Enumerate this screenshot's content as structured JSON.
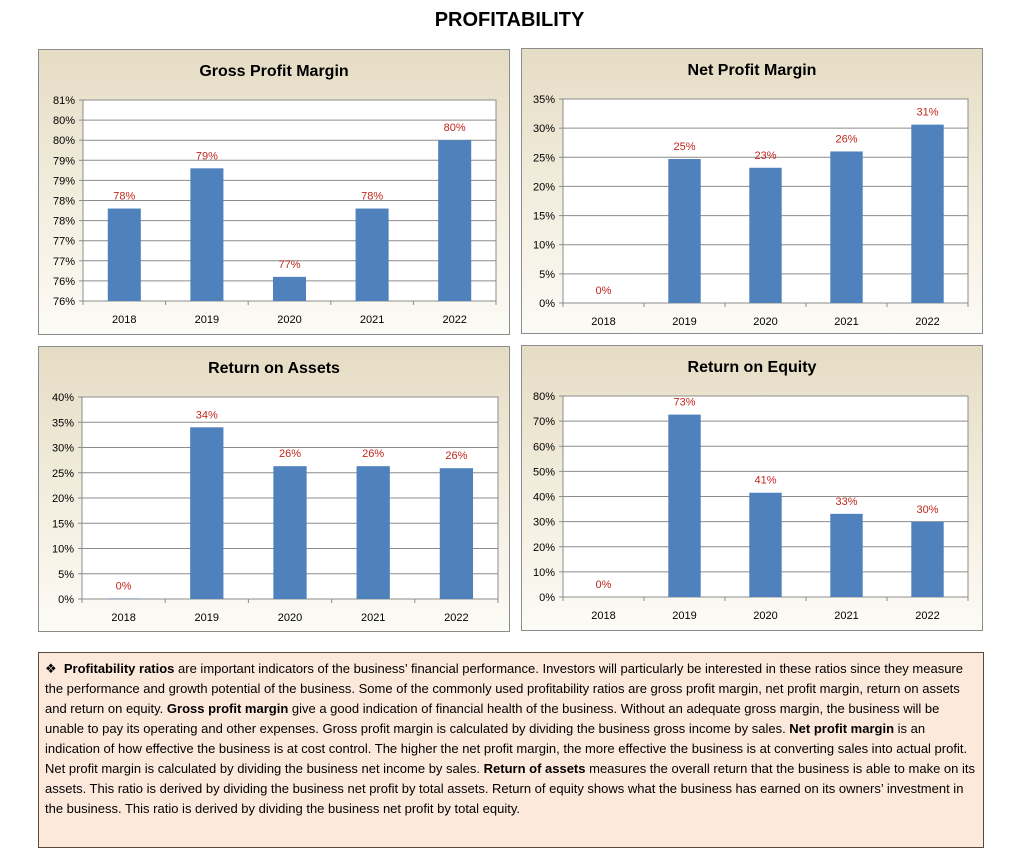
{
  "page": {
    "title": "PROFITABILITY"
  },
  "chart_data": [
    {
      "type": "bar",
      "title": "Gross Profit Margin",
      "categories": [
        "2018",
        "2019",
        "2020",
        "2021",
        "2022"
      ],
      "values": [
        78.3,
        79.3,
        76.6,
        78.3,
        80.0
      ],
      "data_labels": [
        "78%",
        "79%",
        "77%",
        "78%",
        "80%"
      ],
      "ylim": [
        76,
        81
      ],
      "yticks": [
        "76%",
        "76%",
        "77%",
        "77%",
        "78%",
        "78%",
        "79%",
        "79%",
        "80%",
        "80%",
        "81%"
      ],
      "bar_color": "#4f81bd",
      "label_color": "#c0261c",
      "grid": true
    },
    {
      "type": "bar",
      "title": "Net Profit Margin",
      "categories": [
        "2018",
        "2019",
        "2020",
        "2021",
        "2022"
      ],
      "values": [
        0,
        24.7,
        23.2,
        26.0,
        30.6
      ],
      "data_labels": [
        "0%",
        "25%",
        "23%",
        "26%",
        "31%"
      ],
      "ylim": [
        0,
        35
      ],
      "yticks": [
        "0%",
        "5%",
        "10%",
        "15%",
        "20%",
        "25%",
        "30%",
        "35%"
      ],
      "bar_color": "#4f81bd",
      "label_color": "#c0261c",
      "grid": true
    },
    {
      "type": "bar",
      "title": "Return on Assets",
      "categories": [
        "2018",
        "2019",
        "2020",
        "2021",
        "2022"
      ],
      "values": [
        0.1,
        34.0,
        26.3,
        26.3,
        25.9
      ],
      "data_labels": [
        "0%",
        "34%",
        "26%",
        "26%",
        "26%"
      ],
      "ylim": [
        0,
        40
      ],
      "yticks": [
        "0%",
        "5%",
        "10%",
        "15%",
        "20%",
        "25%",
        "30%",
        "35%",
        "40%"
      ],
      "bar_color": "#4f81bd",
      "label_color": "#c0261c",
      "grid": true
    },
    {
      "type": "bar",
      "title": "Return on Equity",
      "categories": [
        "2018",
        "2019",
        "2020",
        "2021",
        "2022"
      ],
      "values": [
        0,
        72.6,
        41.5,
        33.1,
        29.9
      ],
      "data_labels": [
        "0%",
        "73%",
        "41%",
        "33%",
        "30%"
      ],
      "ylim": [
        0,
        80
      ],
      "yticks": [
        "0%",
        "10%",
        "20%",
        "30%",
        "40%",
        "50%",
        "60%",
        "70%",
        "80%"
      ],
      "bar_color": "#4f81bd",
      "label_color": "#c0261c",
      "grid": true
    }
  ],
  "note": {
    "bullet": "❖",
    "parts": [
      {
        "text": "Profitability ratios",
        "bold": true
      },
      {
        "text": " are important indicators of the business’ financial performance. Investors will particularly be interested in these ratios since they measure the performance and growth potential of the business. Some of the commonly used profitability ratios are gross profit margin, net profit margin, return on assets and return on equity. ",
        "bold": false
      },
      {
        "text": "Gross profit margin",
        "bold": true
      },
      {
        "text": " give a good indication of financial health of the business. Without an adequate gross margin, the business will be unable to pay its operating and other expenses.  Gross profit margin is calculated by dividing the business gross income by sales. ",
        "bold": false
      },
      {
        "text": "Net profit margin",
        "bold": true
      },
      {
        "text": " is an indication of how effective the business is at cost control. The higher the net profit margin, the more effective the business is at converting sales into actual profit.  Net profit margin is calculated by dividing the business net income by sales. ",
        "bold": false
      },
      {
        "text": "Return of assets",
        "bold": true
      },
      {
        "text": " measures the overall return that the business is able to make on its assets. This ratio is derived by dividing the business net profit by total assets.  Return of equity shows what the business has earned on its owners’ investment in the business. This ratio is derived by dividing the business net profit by total equity.",
        "bold": false
      }
    ]
  }
}
